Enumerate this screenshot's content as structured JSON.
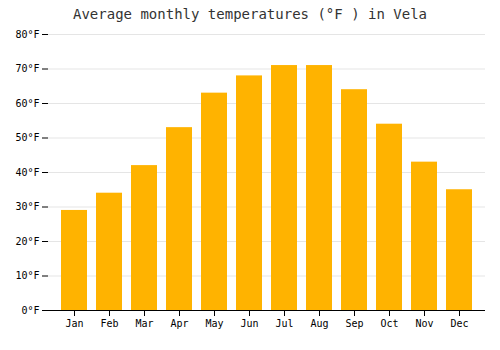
{
  "chart_data": {
    "type": "bar",
    "title": "Average monthly temperatures (°F ) in Vela",
    "categories": [
      "Jan",
      "Feb",
      "Mar",
      "Apr",
      "May",
      "Jun",
      "Jul",
      "Aug",
      "Sep",
      "Oct",
      "Nov",
      "Dec"
    ],
    "values": [
      29,
      34,
      42,
      53,
      63,
      68,
      71,
      71,
      64,
      54,
      43,
      35
    ],
    "color": "#FFB300",
    "ylim": [
      0,
      80
    ],
    "yticks": [
      {
        "value": 0,
        "label": "0°F"
      },
      {
        "value": 10,
        "label": "10°F"
      },
      {
        "value": 20,
        "label": "20°F"
      },
      {
        "value": 30,
        "label": "30°F"
      },
      {
        "value": 40,
        "label": "40°F"
      },
      {
        "value": 50,
        "label": "50°F"
      },
      {
        "value": 60,
        "label": "60°F"
      },
      {
        "value": 70,
        "label": "70°F"
      },
      {
        "value": 80,
        "label": "80°F"
      }
    ],
    "grid": true
  }
}
